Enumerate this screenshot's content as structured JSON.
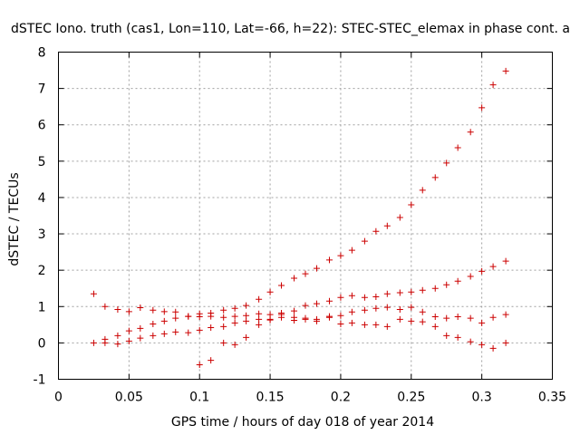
{
  "chart_data": {
    "type": "scatter",
    "title": "dSTEC Iono. truth (cas1, Lon=110, Lat=-66, h=22): STEC-STEC_elemax in phase cont. a",
    "xlabel": "GPS time / hours of day 018 of year 2014",
    "ylabel": "dSTEC  / TECUs",
    "xlim": [
      0,
      0.35
    ],
    "ylim": [
      -1,
      8
    ],
    "x_ticks": [
      0,
      0.05,
      0.1,
      0.15,
      0.2,
      0.25,
      0.3,
      0.35
    ],
    "x_tick_labels": [
      "0",
      "0.05",
      "0.1",
      "0.15",
      "0.2",
      "0.25",
      "0.3",
      "0.35"
    ],
    "y_ticks": [
      -1,
      0,
      1,
      2,
      3,
      4,
      5,
      6,
      7,
      8
    ],
    "y_tick_labels": [
      "-1",
      "0",
      "1",
      "2",
      "3",
      "4",
      "5",
      "6",
      "7",
      "8"
    ],
    "grid": true,
    "marker": "plus",
    "color": "#cc0000",
    "series": [
      {
        "x": [
          0.025,
          0.033,
          0.042,
          0.05,
          0.058,
          0.067,
          0.075,
          0.083,
          0.092,
          0.1,
          0.108,
          0.117,
          0.125,
          0.133,
          0.142,
          0.15,
          0.158,
          0.167,
          0.175,
          0.183,
          0.192,
          0.2,
          0.208,
          0.217,
          0.225,
          0.233,
          0.242,
          0.25,
          0.258,
          0.267,
          0.275,
          0.283,
          0.292,
          0.3,
          0.308,
          0.317
        ],
        "y": [
          1.35,
          1.0,
          0.92,
          0.86,
          0.97,
          0.9,
          0.86,
          0.85,
          0.73,
          0.8,
          0.82,
          0.9,
          0.95,
          1.03,
          1.2,
          1.4,
          1.58,
          1.78,
          1.9,
          2.05,
          2.28,
          2.4,
          2.55,
          2.8,
          3.07,
          3.22,
          3.45,
          3.8,
          4.2,
          4.55,
          4.95,
          5.37,
          5.8,
          6.47,
          7.1,
          7.48
        ]
      },
      {
        "x": [
          0.025,
          0.033,
          0.042,
          0.05,
          0.058,
          0.067,
          0.075,
          0.083,
          0.092,
          0.1,
          0.108,
          0.117,
          0.125,
          0.133,
          0.142,
          0.15,
          0.158,
          0.167,
          0.175,
          0.183,
          0.192,
          0.2,
          0.208,
          0.217,
          0.225,
          0.233,
          0.242,
          0.25,
          0.258,
          0.267,
          0.275,
          0.283,
          0.292,
          0.3,
          0.308,
          0.317
        ],
        "y": [
          0.0,
          0.1,
          0.2,
          0.33,
          0.4,
          0.52,
          0.6,
          0.68,
          0.73,
          0.72,
          0.73,
          0.7,
          0.73,
          0.75,
          0.8,
          0.78,
          0.82,
          0.88,
          1.03,
          1.08,
          1.15,
          1.25,
          1.3,
          1.25,
          1.27,
          1.35,
          1.38,
          1.4,
          1.45,
          1.5,
          1.6,
          1.7,
          1.83,
          1.97,
          2.1,
          2.25
        ]
      },
      {
        "x": [
          0.033,
          0.042,
          0.05,
          0.058,
          0.067,
          0.075,
          0.083,
          0.092,
          0.1,
          0.108,
          0.117,
          0.125,
          0.133,
          0.142,
          0.15,
          0.158,
          0.167,
          0.175,
          0.183,
          0.192,
          0.2,
          0.208,
          0.217,
          0.225,
          0.233,
          0.242,
          0.25,
          0.258,
          0.267,
          0.275,
          0.283,
          0.292,
          0.3,
          0.308,
          0.317
        ],
        "y": [
          0.0,
          -0.03,
          0.05,
          0.13,
          0.2,
          0.25,
          0.3,
          0.28,
          0.35,
          0.42,
          0.45,
          0.55,
          0.6,
          0.65,
          0.65,
          0.7,
          0.62,
          0.65,
          0.6,
          0.73,
          0.75,
          0.85,
          0.9,
          0.95,
          0.98,
          0.92,
          0.98,
          0.85,
          0.72,
          0.68,
          0.72,
          0.68,
          0.55,
          0.7,
          0.78
        ]
      },
      {
        "x": [
          0.1,
          0.108,
          0.117,
          0.125,
          0.133,
          0.142,
          0.15,
          0.158,
          0.167,
          0.175,
          0.183,
          0.192,
          0.2,
          0.208,
          0.217,
          0.225,
          0.233,
          0.242,
          0.25,
          0.258,
          0.267,
          0.275,
          0.283,
          0.292,
          0.3,
          0.308,
          0.317
        ],
        "y": [
          -0.6,
          -0.48,
          0.0,
          -0.05,
          0.15,
          0.5,
          0.63,
          0.78,
          0.7,
          0.68,
          0.65,
          0.7,
          0.52,
          0.55,
          0.5,
          0.5,
          0.45,
          0.65,
          0.6,
          0.58,
          0.45,
          0.2,
          0.15,
          0.03,
          -0.05,
          -0.15,
          0.0
        ]
      }
    ]
  }
}
